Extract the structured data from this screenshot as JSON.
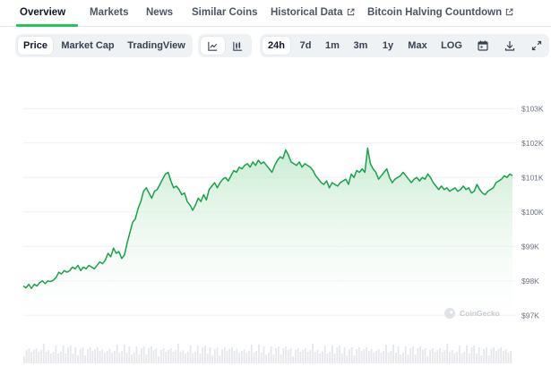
{
  "nav": {
    "tabs": [
      {
        "label": "Overview",
        "active": true
      },
      {
        "label": "Markets"
      },
      {
        "label": "News"
      },
      {
        "label": "Similar Coins"
      },
      {
        "label": "Historical Data",
        "external": true
      },
      {
        "label": "Bitcoin Halving Countdown",
        "external": true
      }
    ]
  },
  "toolbar": {
    "metrics": [
      "Price",
      "Market Cap",
      "TradingView"
    ],
    "active_metric": "Price",
    "chart_type_icons": [
      "line-chart-icon",
      "candlestick-chart-icon"
    ],
    "ranges": [
      "24h",
      "7d",
      "1m",
      "3m",
      "1y",
      "Max",
      "LOG"
    ],
    "active_range": "24h",
    "action_icons": [
      "calendar-icon",
      "download-icon",
      "expand-icon"
    ]
  },
  "colors": {
    "accent": "#22c55e",
    "line": "#16a34a",
    "area_top": "#bfe8c9",
    "grid": "#eef0f2"
  },
  "watermark": "CoinGecko",
  "chart_data": {
    "type": "area",
    "title": "",
    "xlabel": "",
    "ylabel": "",
    "ylim": [
      96800,
      103500
    ],
    "y_ticks": [
      103000,
      102000,
      101000,
      100000,
      99000,
      98000,
      97000
    ],
    "y_tick_labels": [
      "$103K",
      "$102K",
      "$101K",
      "$100K",
      "$99K",
      "$98K",
      "$97K"
    ],
    "grid": true,
    "series": [
      {
        "values": [
          97850,
          97800,
          97900,
          97780,
          97900,
          97850,
          97950,
          98000,
          97920,
          98000,
          97980,
          98020,
          98100,
          98250,
          98200,
          98300,
          98250,
          98300,
          98400,
          98350,
          98450,
          98300,
          98400,
          98350,
          98450,
          98400,
          98350,
          98450,
          98550,
          98500,
          98600,
          98800,
          98700,
          98950,
          98800,
          98850,
          98650,
          98750,
          99100,
          99400,
          99700,
          99800,
          100100,
          100300,
          100600,
          100700,
          100550,
          100400,
          100600,
          100650,
          100800,
          100950,
          101100,
          101150,
          100900,
          100700,
          100750,
          100650,
          100500,
          100550,
          100300,
          100200,
          100050,
          100200,
          100400,
          100300,
          100500,
          100350,
          100650,
          100750,
          100850,
          100700,
          100850,
          100950,
          101000,
          100900,
          101050,
          101200,
          101150,
          101300,
          101250,
          101350,
          101400,
          101300,
          101450,
          101350,
          101500,
          101400,
          101450,
          101350,
          101250,
          101150,
          101350,
          101500,
          101600,
          101550,
          101800,
          101650,
          101450,
          101400,
          101350,
          101450,
          101300,
          101400,
          101350,
          101300,
          101200,
          101050,
          100950,
          100850,
          100800,
          100900,
          100700,
          100850,
          100800,
          100750,
          100850,
          100900,
          100950,
          100800,
          101100,
          101000,
          101200,
          101150,
          101250,
          101150,
          101850,
          101400,
          101250,
          101150,
          100950,
          101050,
          101150,
          101250,
          101000,
          100850,
          100950,
          101000,
          101050,
          101150,
          101050,
          100950,
          100850,
          100950,
          101000,
          100900,
          101000,
          100950,
          101100,
          101000,
          100850,
          100750,
          100650,
          100750,
          100650,
          100700,
          100600,
          100650,
          100700,
          100600,
          100650,
          100750,
          100650,
          100700,
          100550,
          100600,
          100800,
          100650,
          100550,
          100500,
          100600,
          100650,
          100700,
          100850,
          100900,
          100950,
          101050,
          101000,
          101100,
          101050
        ]
      }
    ]
  }
}
